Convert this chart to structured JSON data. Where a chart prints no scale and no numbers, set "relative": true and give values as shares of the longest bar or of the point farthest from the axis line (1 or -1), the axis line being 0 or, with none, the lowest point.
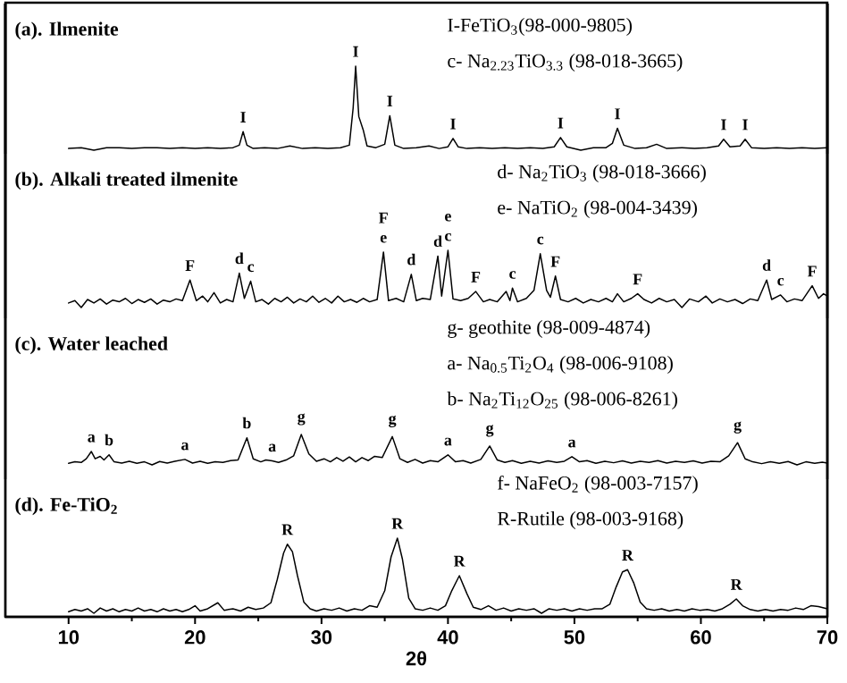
{
  "chart_data": [
    {
      "type": "line",
      "title": "(a). Ilmenite",
      "relative": true,
      "xlim": [
        5,
        70
      ],
      "tick_labels": false,
      "color": "#000000",
      "annotations": [
        "I-FeTiO$_{3}$(98-000-9805)",
        "c- Na$_{2.23}$TiO$_{3.3}$ (98-018-3665)",
        {
          "text": "I",
          "x": 23.8,
          "y": 0.22
        },
        {
          "text": "I",
          "x": 32.7,
          "y": 1
        },
        {
          "text": "I",
          "x": 35.4,
          "y": 0.41
        },
        {
          "text": "I",
          "x": 40.4,
          "y": 0.14
        },
        {
          "text": "I",
          "x": 48.9,
          "y": 0.15
        },
        {
          "text": "I",
          "x": 53.4,
          "y": 0.26
        },
        {
          "text": "I",
          "x": 61.8,
          "y": 0.13
        },
        {
          "text": "I",
          "x": 63.5,
          "y": 0.13
        }
      ],
      "x": [
        10,
        11,
        12,
        13,
        14,
        15,
        16,
        17,
        18,
        19,
        20,
        21,
        22,
        23,
        23.5,
        23.8,
        24.1,
        24.6,
        25.5,
        26.5,
        27.5,
        28.5,
        29.5,
        30.5,
        31.5,
        32.2,
        32.5,
        32.7,
        32.95,
        33.3,
        33.6,
        34.3,
        35.0,
        35.4,
        35.8,
        36.5,
        37.5,
        38.5,
        39.3,
        40.0,
        40.4,
        40.8,
        41.5,
        42.5,
        43.5,
        44.5,
        45.5,
        46.5,
        47.5,
        48.4,
        48.9,
        49.4,
        50.5,
        51.5,
        52.5,
        53.0,
        53.4,
        53.9,
        54.8,
        55.7,
        56.5,
        57.3,
        58.5,
        59.5,
        60.5,
        61.4,
        61.8,
        62.3,
        63.1,
        63.5,
        64.0,
        65,
        66,
        67,
        68,
        69,
        70
      ],
      "values": [
        0.02,
        0.03,
        0,
        0.03,
        0.03,
        0.02,
        0.03,
        0.03,
        0.02,
        0.03,
        0.02,
        0.03,
        0.02,
        0.03,
        0.06,
        0.22,
        0.06,
        0.02,
        0.03,
        0.02,
        0.05,
        0.02,
        0.03,
        0.02,
        0.03,
        0.06,
        0.5,
        1,
        0.4,
        0.24,
        0.05,
        0.03,
        0.07,
        0.41,
        0.06,
        0.02,
        0.03,
        0.05,
        0.02,
        0.04,
        0.14,
        0.04,
        0.02,
        0.03,
        0.02,
        0.03,
        0.02,
        0.03,
        0.02,
        0.04,
        0.15,
        0.04,
        0,
        0.03,
        0.03,
        0.08,
        0.26,
        0.06,
        0.02,
        0.03,
        0.07,
        0.02,
        0.03,
        0.02,
        0.03,
        0.05,
        0.13,
        0.04,
        0.05,
        0.13,
        0.03,
        0.02,
        0.03,
        0.02,
        0.03,
        0.02,
        0.03
      ]
    },
    {
      "type": "line",
      "title": "(b). Alkali treated ilmenite",
      "relative": true,
      "xlim": [
        5,
        70
      ],
      "tick_labels": false,
      "color": "#000000",
      "annotations": [
        "d- Na$_{2}$TiO$_{3}$ (98-018-3666)",
        "e- NaTiO$_{2}$ (98-004-3439)",
        {
          "text": "F",
          "x": 19.6,
          "y": 0.48
        },
        {
          "text": "d",
          "x": 23.5,
          "y": 0.6
        },
        {
          "text": "c",
          "x": 24.4,
          "y": 0.46
        },
        {
          "text": "e",
          "x": 34.9,
          "y": 0.97
        },
        {
          "text": "F",
          "x": 34.9,
          "y": 0.97
        },
        {
          "text": "d",
          "x": 37.1,
          "y": 0.58
        },
        {
          "text": "d",
          "x": 39.2,
          "y": 0.9
        },
        {
          "text": "c",
          "x": 40.0,
          "y": 1
        },
        {
          "text": "e",
          "x": 40.0,
          "y": 1
        },
        {
          "text": "F",
          "x": 42.2,
          "y": 0.28
        },
        {
          "text": "c",
          "x": 45.1,
          "y": 0.34
        },
        {
          "text": "c",
          "x": 47.3,
          "y": 0.94
        },
        {
          "text": "F",
          "x": 48.5,
          "y": 0.55
        },
        {
          "text": "F",
          "x": 55.0,
          "y": 0.24
        },
        {
          "text": "d",
          "x": 65.2,
          "y": 0.48
        },
        {
          "text": "c",
          "x": 66.3,
          "y": 0.22
        },
        {
          "text": "F",
          "x": 68.8,
          "y": 0.38
        }
      ],
      "x": [
        10,
        10.5,
        11,
        11.5,
        12,
        12.5,
        13,
        13.5,
        14,
        14.5,
        15,
        15.5,
        16,
        16.5,
        17,
        17.5,
        18,
        18.5,
        19,
        19.6,
        20.1,
        20.6,
        21,
        21.5,
        22,
        22.5,
        23,
        23.5,
        23.9,
        24.4,
        24.8,
        25.3,
        25.8,
        26.3,
        26.8,
        27.3,
        27.8,
        28.3,
        28.8,
        29.3,
        29.8,
        30.3,
        30.8,
        31.3,
        31.8,
        32.3,
        32.8,
        33.3,
        33.8,
        34.4,
        34.9,
        35.3,
        35.9,
        36.5,
        37.1,
        37.5,
        38.0,
        38.6,
        39.2,
        39.5,
        40.0,
        40.4,
        41.0,
        41.6,
        42.2,
        42.8,
        43.3,
        43.9,
        44.6,
        44.9,
        45.1,
        45.5,
        46.2,
        46.8,
        47.3,
        47.8,
        48.1,
        48.5,
        48.9,
        49.5,
        50.1,
        50.7,
        51.3,
        51.9,
        52.5,
        53.0,
        53.4,
        53.9,
        54.5,
        55.0,
        55.5,
        56.1,
        56.7,
        57.3,
        57.9,
        58.5,
        59.1,
        59.8,
        60.4,
        60.9,
        61.5,
        62.1,
        62.7,
        63.3,
        63.9,
        64.5,
        65.2,
        65.6,
        66.3,
        66.8,
        67.4,
        68.0,
        68.8,
        69.3,
        69.7,
        70
      ],
      "values": [
        0.08,
        0.12,
        0,
        0.14,
        0.08,
        0.15,
        0.06,
        0.13,
        0.1,
        0.16,
        0.07,
        0.14,
        0.09,
        0.15,
        0.06,
        0.13,
        0.1,
        0.15,
        0.12,
        0.48,
        0.12,
        0.2,
        0.1,
        0.26,
        0.08,
        0.14,
        0.1,
        0.6,
        0.16,
        0.46,
        0.1,
        0.14,
        0.06,
        0.16,
        0.1,
        0.18,
        0.08,
        0.15,
        0.1,
        0.2,
        0.09,
        0.16,
        0.08,
        0.2,
        0.1,
        0.14,
        0.09,
        0.16,
        0.1,
        0.14,
        0.97,
        0.12,
        0.16,
        0.1,
        0.58,
        0.12,
        0.16,
        0.14,
        0.9,
        0.2,
        1,
        0.15,
        0.12,
        0.16,
        0.28,
        0.1,
        0.14,
        0.1,
        0.28,
        0.12,
        0.34,
        0.1,
        0.16,
        0.3,
        0.94,
        0.3,
        0.18,
        0.55,
        0.14,
        0.1,
        0.16,
        0.08,
        0.14,
        0.1,
        0.16,
        0.1,
        0.24,
        0.1,
        0.16,
        0.24,
        0.14,
        0.08,
        0.16,
        0.1,
        0.14,
        0,
        0.15,
        0.1,
        0.2,
        0.08,
        0.15,
        0.1,
        0.14,
        0.07,
        0.15,
        0.12,
        0.48,
        0.14,
        0.22,
        0.1,
        0.15,
        0.12,
        0.38,
        0.16,
        0.24,
        0.2
      ]
    },
    {
      "type": "line",
      "title": "(c). Water leached",
      "relative": true,
      "xlim": [
        5,
        70
      ],
      "tick_labels": false,
      "color": "#000000",
      "annotations": [
        "g- geothite (98-009-4874)",
        "a- Na$_{0.5}$Ti$_{2}$O$_{4}$ (98-006-9108)",
        "b- Na$_{2}$Ti$_{12}$O$_{25}$ (98-006-8261)",
        {
          "text": "a",
          "x": 11.8,
          "y": 0.44
        },
        {
          "text": "b",
          "x": 13.2,
          "y": 0.33
        },
        {
          "text": "a",
          "x": 19.2,
          "y": 0.18
        },
        {
          "text": "b",
          "x": 24.1,
          "y": 0.89
        },
        {
          "text": "a",
          "x": 26.1,
          "y": 0.13
        },
        {
          "text": "g",
          "x": 28.4,
          "y": 1
        },
        {
          "text": "g",
          "x": 35.6,
          "y": 0.93
        },
        {
          "text": "a",
          "x": 40.0,
          "y": 0.33
        },
        {
          "text": "g",
          "x": 43.3,
          "y": 0.62
        },
        {
          "text": "a",
          "x": 49.8,
          "y": 0.27
        },
        {
          "text": "g",
          "x": 62.9,
          "y": 0.73
        }
      ],
      "x": [
        10,
        10.5,
        11,
        11.4,
        11.8,
        12.1,
        12.5,
        12.8,
        13.2,
        13.6,
        14.2,
        14.8,
        15.4,
        16,
        16.6,
        17.2,
        17.8,
        18.4,
        19.2,
        19.8,
        20.4,
        21,
        21.6,
        22.2,
        22.8,
        23.4,
        24.1,
        24.6,
        25.2,
        25.6,
        26.1,
        26.6,
        27.2,
        27.8,
        28.4,
        29,
        29.6,
        30.2,
        30.7,
        31.2,
        31.7,
        32.2,
        32.7,
        33.2,
        33.7,
        34.2,
        34.8,
        35.6,
        36.2,
        36.8,
        37.4,
        38,
        38.6,
        39.2,
        40,
        40.6,
        41.2,
        41.8,
        42.6,
        43.3,
        43.9,
        44.5,
        45.1,
        45.8,
        46.5,
        47.2,
        47.9,
        48.6,
        49.2,
        49.8,
        50.4,
        51,
        51.7,
        52.4,
        53.1,
        53.8,
        54.5,
        55.2,
        55.9,
        56.6,
        57.3,
        58,
        58.7,
        59.4,
        60.1,
        60.8,
        61.5,
        62.2,
        62.9,
        63.5,
        64.1,
        64.8,
        65.5,
        66.2,
        66.9,
        67.6,
        68.3,
        69,
        69.6,
        70
      ],
      "values": [
        0.05,
        0.1,
        0.08,
        0.2,
        0.44,
        0.2,
        0.28,
        0.16,
        0.33,
        0.1,
        0.06,
        0.12,
        0.05,
        0.1,
        0,
        0.11,
        0.06,
        0.12,
        0.18,
        0.06,
        0.12,
        0.05,
        0.1,
        0.08,
        0.14,
        0.16,
        0.89,
        0.2,
        0.1,
        0.16,
        0.13,
        0.08,
        0.16,
        0.3,
        1,
        0.36,
        0.12,
        0.2,
        0.1,
        0.24,
        0.12,
        0.26,
        0.1,
        0.24,
        0.14,
        0.28,
        0.24,
        0.93,
        0.2,
        0.08,
        0.18,
        0.06,
        0.14,
        0.1,
        0.33,
        0.1,
        0.14,
        0.06,
        0.18,
        0.62,
        0.16,
        0.08,
        0.14,
        0.05,
        0.12,
        0.06,
        0.13,
        0.08,
        0.12,
        0.27,
        0.1,
        0.14,
        0.05,
        0.12,
        0.07,
        0.13,
        0.06,
        0.12,
        0.08,
        0.14,
        0.06,
        0.12,
        0.08,
        0.13,
        0.06,
        0.12,
        0.1,
        0.3,
        0.73,
        0.2,
        0.1,
        0.04,
        0.1,
        0.05,
        0.11,
        0,
        0.1,
        0.05,
        0.09,
        0.06
      ]
    },
    {
      "type": "line",
      "title": "(d). Fe-TiO$_{2}$",
      "relative": true,
      "xlim": [
        5,
        70
      ],
      "xticks": [
        10,
        20,
        30,
        40,
        50,
        60,
        70
      ],
      "xlabel": "2θ",
      "tick_labels": "x",
      "color": "#000000",
      "annotations": [
        "f- NaFeO$_{2}$ (98-003-7157)",
        "R-Rutile (98-003-9168)",
        {
          "text": "R",
          "x": 27.3,
          "y": 0.92
        },
        {
          "text": "R",
          "x": 36.0,
          "y": 1
        },
        {
          "text": "R",
          "x": 40.9,
          "y": 0.5
        },
        {
          "text": "R",
          "x": 54.2,
          "y": 0.58
        },
        {
          "text": "R",
          "x": 62.8,
          "y": 0.19
        }
      ],
      "x": [
        10,
        10.5,
        11,
        11.5,
        12,
        12.5,
        13,
        13.5,
        14,
        14.5,
        15,
        15.5,
        16,
        16.5,
        17,
        17.5,
        18,
        18.5,
        19,
        19.5,
        20,
        20.4,
        21,
        21.8,
        22.3,
        23,
        23.6,
        24.2,
        24.8,
        25.4,
        26,
        26.5,
        27,
        27.3,
        27.7,
        28.1,
        28.6,
        29.1,
        29.6,
        30.2,
        30.8,
        31.4,
        32,
        32.6,
        33.2,
        33.8,
        34.4,
        35,
        35.5,
        36,
        36.4,
        36.9,
        37.4,
        38,
        38.6,
        39.2,
        39.8,
        40.3,
        40.9,
        41.5,
        42,
        42.6,
        43.2,
        43.8,
        44.4,
        45,
        45.6,
        46.2,
        46.8,
        47.4,
        48,
        48.6,
        49.2,
        49.8,
        50.4,
        51,
        51.6,
        52.2,
        52.8,
        53.3,
        53.8,
        54.2,
        54.7,
        55.2,
        55.7,
        56.3,
        56.9,
        57.5,
        58.1,
        58.7,
        59.3,
        59.9,
        60.5,
        61.1,
        61.7,
        62.3,
        62.8,
        63.3,
        63.9,
        64.5,
        65.1,
        65.7,
        66.3,
        66.9,
        67.5,
        68.1,
        68.7,
        69.3,
        70
      ],
      "values": [
        0.02,
        0.05,
        0.03,
        0.06,
        0,
        0.07,
        0.03,
        0.06,
        0.02,
        0.05,
        0.03,
        0.07,
        0.03,
        0.05,
        0.02,
        0.06,
        0.03,
        0.05,
        0.02,
        0.05,
        0.1,
        0.03,
        0.06,
        0.14,
        0.04,
        0.06,
        0.03,
        0.08,
        0.05,
        0.07,
        0.14,
        0.45,
        0.8,
        0.92,
        0.82,
        0.5,
        0.15,
        0.06,
        0.03,
        0.06,
        0.04,
        0.07,
        0.03,
        0.06,
        0.04,
        0.1,
        0.08,
        0.3,
        0.75,
        1,
        0.72,
        0.2,
        0.06,
        0.04,
        0.07,
        0.04,
        0.1,
        0.3,
        0.5,
        0.26,
        0.08,
        0.05,
        0.1,
        0.04,
        0.07,
        0.03,
        0.06,
        0.04,
        0.06,
        0,
        0.06,
        0.04,
        0.06,
        0.03,
        0.06,
        0.04,
        0.06,
        0.06,
        0.12,
        0.35,
        0.55,
        0.58,
        0.4,
        0.15,
        0.06,
        0.04,
        0.06,
        0.03,
        0.05,
        0.03,
        0.06,
        0.04,
        0.05,
        0.03,
        0.06,
        0.12,
        0.19,
        0.1,
        0.05,
        0.03,
        0.05,
        0.03,
        0.05,
        0.04,
        0.07,
        0.05,
        0.1,
        0.09,
        0.06
      ]
    }
  ]
}
